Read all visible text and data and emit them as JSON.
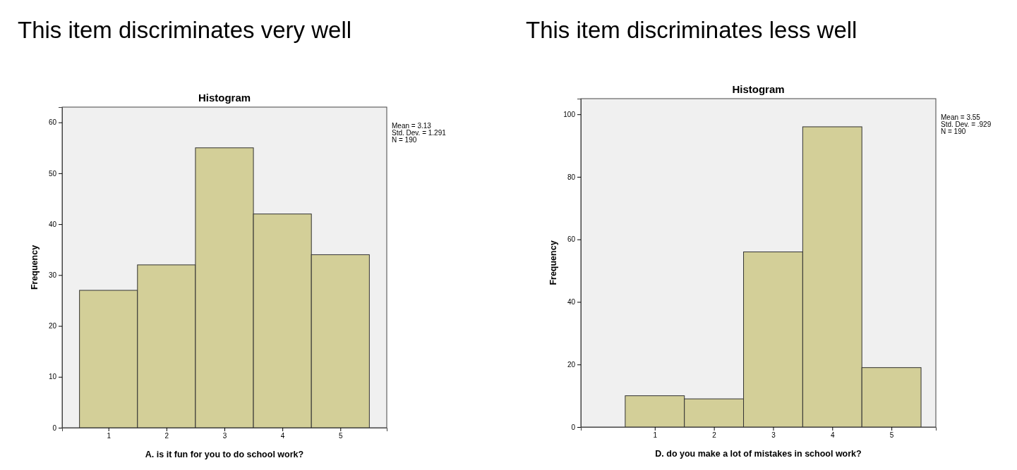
{
  "chart_data": [
    {
      "type": "histogram",
      "title": "This item discriminates very well",
      "subtitle": "Histogram",
      "xlabel": "A. is it fun for you to do school work?",
      "ylabel": "Frequency",
      "bins": [
        0.5,
        1.5,
        2.5,
        3.5,
        4.5,
        5.5
      ],
      "values": [
        27,
        32,
        55,
        42,
        34
      ],
      "color": "#d3cf98",
      "xlim": [
        0.2,
        5.8
      ],
      "ylim": [
        0,
        63
      ],
      "xticks": [
        1,
        2,
        3,
        4,
        5
      ],
      "yticks": [
        0,
        10,
        20,
        30,
        40,
        50,
        60
      ],
      "annotations": [
        "Mean = 3.13",
        "Std. Dev. = 1.291",
        "N = 190"
      ]
    },
    {
      "type": "histogram",
      "title": "This item discriminates less well",
      "subtitle": "Histogram",
      "xlabel": "D. do you make a lot of mistakes in school work?",
      "ylabel": "Frequency",
      "bins": [
        0.5,
        1.5,
        2.5,
        3.5,
        4.5,
        5.5
      ],
      "values": [
        10,
        9,
        56,
        96,
        19
      ],
      "color": "#d3cf98",
      "xlim": [
        -0.25,
        5.75
      ],
      "ylim": [
        0,
        105
      ],
      "xticks": [
        1,
        2,
        3,
        4,
        5
      ],
      "yticks": [
        0,
        20,
        40,
        60,
        80,
        100
      ],
      "annotations": [
        "Mean = 3.55",
        "Std. Dev. = .929",
        "N = 190"
      ]
    }
  ]
}
